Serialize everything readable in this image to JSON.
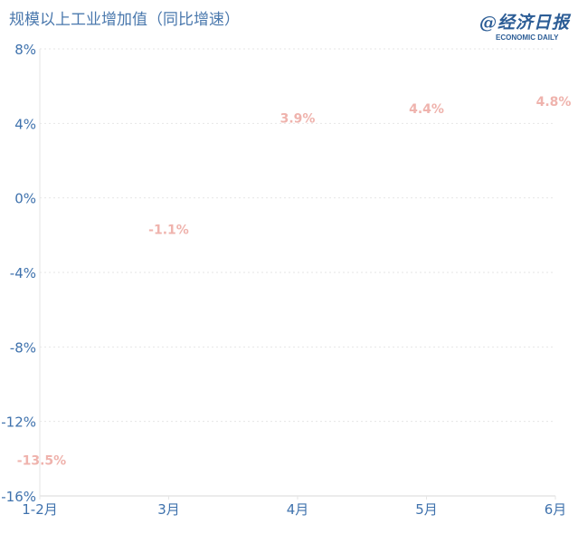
{
  "title": "规模以上工业增加值（同比增速）",
  "logo": {
    "cn": "@经济日报",
    "en": "ECONOMIC DAILY"
  },
  "colors": {
    "axis_text": "#3f72ad",
    "data_label": "#efb3ad",
    "grid": "#e6e6e6"
  },
  "chart_data": {
    "type": "line",
    "title": "规模以上工业增加值（同比增速）",
    "categories": [
      "1-2月",
      "3月",
      "4月",
      "5月",
      "6月"
    ],
    "values": [
      -13.5,
      -1.1,
      3.9,
      4.4,
      4.8
    ],
    "data_labels": [
      "-13.5%",
      "-1.1%",
      "3.9%",
      "4.4%",
      "4.8%"
    ],
    "ylim": [
      -16,
      8
    ],
    "yticks": [
      8,
      4,
      0,
      -4,
      -8,
      -12,
      -16
    ],
    "ytick_labels": [
      "8%",
      "4%",
      "0%",
      "-4%",
      "-8%",
      "-12%",
      "-16%"
    ],
    "grid": true,
    "line_visible": false
  }
}
